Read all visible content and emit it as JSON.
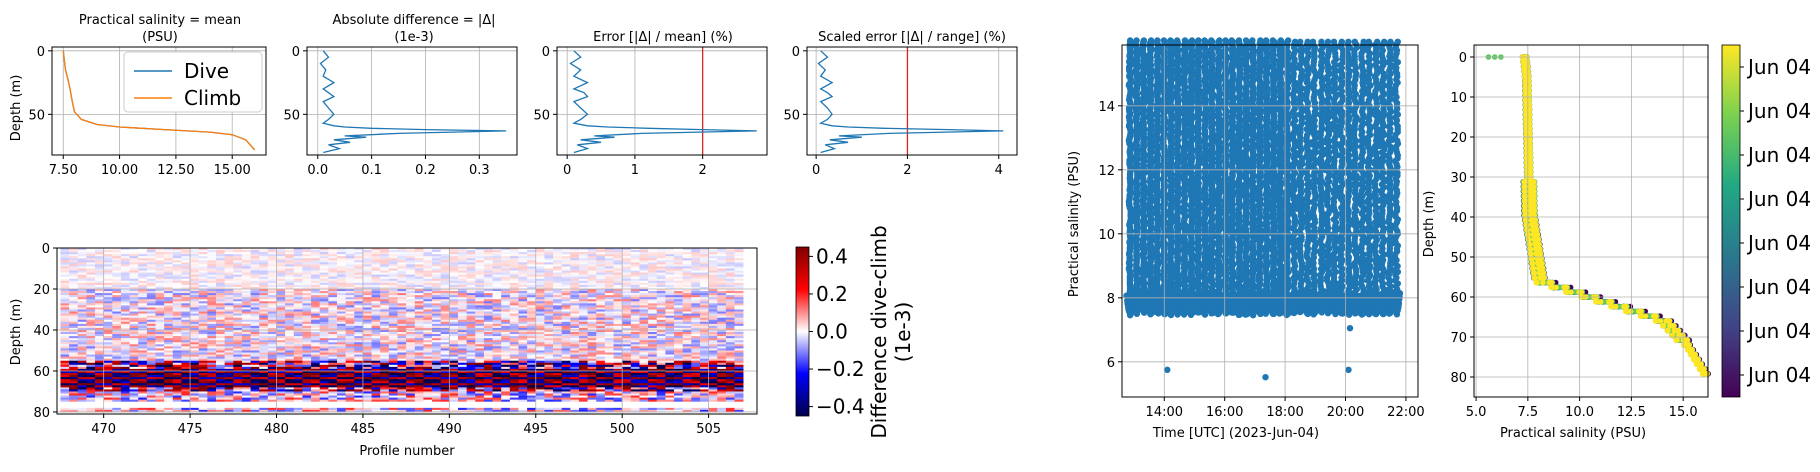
{
  "colors": {
    "dive": "#1f77b4",
    "climb": "#ff7f0e",
    "threshold": "#d62728",
    "diverging_negative": "#00008b",
    "diverging_positive": "#c00000",
    "viridis_low": "#440154",
    "viridis_high": "#fde725"
  },
  "chart_data": [
    {
      "type": "line",
      "title": "Practical salinity  = mean",
      "title_line2": "(PSU)",
      "xlabel": "",
      "ylabel": "Depth (m)",
      "xlim": [
        7.0,
        16.5
      ],
      "ylim": [
        82,
        -3
      ],
      "xticks": [
        "7.50",
        "10.00",
        "12.50",
        "15.00"
      ],
      "xtick_values": [
        7.5,
        10.0,
        12.5,
        15.0
      ],
      "yticks": [
        "0",
        "50"
      ],
      "ytick_values": [
        0,
        50
      ],
      "grid": true,
      "legend": {
        "placement": "top-right",
        "entries": [
          "Dive",
          "Climb"
        ]
      },
      "series": [
        {
          "name": "Dive",
          "x": [
            7.5,
            7.55,
            7.6,
            7.7,
            7.8,
            7.9,
            8.0,
            8.3,
            9.0,
            10.0,
            11.0,
            12.0,
            13.0,
            14.0,
            15.0,
            15.6,
            15.8,
            16.0
          ],
          "y": [
            0,
            8,
            15,
            22,
            30,
            40,
            48,
            54,
            58,
            60,
            61,
            62,
            63,
            64,
            66,
            70,
            74,
            78
          ]
        },
        {
          "name": "Climb",
          "x": [
            7.5,
            7.55,
            7.6,
            7.7,
            7.8,
            7.9,
            8.0,
            8.3,
            9.0,
            10.0,
            11.0,
            12.0,
            13.0,
            14.0,
            15.0,
            15.6,
            15.8,
            16.0
          ],
          "y": [
            0,
            8,
            15,
            22,
            30,
            40,
            48,
            54,
            58,
            60,
            61,
            62,
            63,
            64,
            66,
            70,
            74,
            78
          ]
        }
      ]
    },
    {
      "type": "line",
      "title": "Absolute difference = |Δ|",
      "title_line2": "(1e-3)",
      "xlim": [
        -0.02,
        0.37
      ],
      "ylim": [
        82,
        -3
      ],
      "xticks": [
        "0.0",
        "0.1",
        "0.2",
        "0.3"
      ],
      "xtick_values": [
        0.0,
        0.1,
        0.2,
        0.3
      ],
      "yticks": [
        "0",
        "50"
      ],
      "ytick_values": [
        0,
        50
      ],
      "grid": true,
      "series": [
        {
          "name": "",
          "x": [
            0.01,
            0.02,
            0.005,
            0.015,
            0.01,
            0.03,
            0.01,
            0.02,
            0.03,
            0.01,
            0.02,
            0.03,
            0.02,
            0.01,
            0.03,
            0.05,
            0.1,
            0.2,
            0.35,
            0.15,
            0.05,
            0.09,
            0.03,
            0.06,
            0.02,
            0.04,
            0.01
          ],
          "y": [
            0,
            5,
            10,
            15,
            20,
            25,
            30,
            33,
            36,
            40,
            45,
            50,
            54,
            57,
            59,
            60,
            61,
            62,
            63,
            65,
            67,
            68,
            70,
            72,
            74,
            77,
            80
          ]
        }
      ]
    },
    {
      "type": "line",
      "title": "Error [|Δ| / mean] (%)",
      "xlim": [
        -0.15,
        2.95
      ],
      "ylim": [
        82,
        -3
      ],
      "xticks": [
        "0",
        "1",
        "2"
      ],
      "xtick_values": [
        0,
        1,
        2
      ],
      "yticks": [
        "0",
        "50"
      ],
      "ytick_values": [
        0,
        50
      ],
      "threshold_x": 2,
      "grid": true,
      "series": [
        {
          "name": "",
          "x": [
            0.1,
            0.2,
            0.05,
            0.2,
            0.1,
            0.3,
            0.1,
            0.25,
            0.3,
            0.1,
            0.2,
            0.3,
            0.2,
            0.1,
            0.3,
            0.6,
            1.2,
            2.0,
            2.8,
            1.1,
            0.4,
            0.7,
            0.2,
            0.5,
            0.15,
            0.3,
            0.1
          ],
          "y": [
            0,
            5,
            10,
            15,
            20,
            25,
            30,
            33,
            36,
            40,
            45,
            50,
            54,
            57,
            59,
            60,
            61,
            62,
            63,
            65,
            67,
            68,
            70,
            72,
            74,
            77,
            80
          ]
        }
      ]
    },
    {
      "type": "line",
      "title": "Scaled error [|Δ| / range] (%)",
      "xlim": [
        -0.2,
        4.4
      ],
      "ylim": [
        82,
        -3
      ],
      "xticks": [
        "0",
        "2",
        "4"
      ],
      "xtick_values": [
        0,
        2,
        4
      ],
      "yticks": [
        "0",
        "50"
      ],
      "ytick_values": [
        0,
        50
      ],
      "threshold_x": 2,
      "grid": true,
      "series": [
        {
          "name": "",
          "x": [
            0.1,
            0.25,
            0.05,
            0.2,
            0.1,
            0.35,
            0.1,
            0.25,
            0.35,
            0.1,
            0.25,
            0.35,
            0.25,
            0.1,
            0.35,
            0.7,
            1.5,
            2.9,
            4.1,
            1.6,
            0.5,
            1.0,
            0.3,
            0.7,
            0.2,
            0.4,
            0.1
          ],
          "y": [
            0,
            5,
            10,
            15,
            20,
            25,
            30,
            33,
            36,
            40,
            45,
            50,
            54,
            57,
            59,
            60,
            61,
            62,
            63,
            65,
            67,
            68,
            70,
            72,
            74,
            77,
            80
          ]
        }
      ]
    },
    {
      "type": "heatmap",
      "xlabel": "Profile number",
      "ylabel": "Depth (m)",
      "xlim": [
        467.3,
        507.8
      ],
      "ylim": [
        81,
        0
      ],
      "xticks": [
        "470",
        "475",
        "480",
        "485",
        "490",
        "495",
        "500",
        "505"
      ],
      "xtick_values": [
        470,
        475,
        480,
        485,
        490,
        495,
        500,
        505
      ],
      "yticks": [
        "0",
        "20",
        "40",
        "60",
        "80"
      ],
      "ytick_values": [
        0,
        20,
        40,
        60,
        80
      ],
      "grid": true,
      "x_start": 467.5,
      "x_step": 0.5,
      "n_columns": 79,
      "depth_step": 1,
      "n_depths": 80,
      "colorbar": {
        "label": "Difference dive-climb",
        "label_line2": "(1e-3)",
        "ticks": [
          "0.4",
          "0.2",
          "0.0",
          "−0.2",
          "−0.4"
        ],
        "tick_values": [
          0.4,
          0.2,
          0.0,
          -0.2,
          -0.4
        ],
        "range": [
          -0.45,
          0.45
        ]
      }
    },
    {
      "type": "scatter",
      "xlabel": "Time [UTC] (2023-Jun-04)",
      "ylabel": "Practical salinity (PSU)",
      "xlim_hours": [
        12.6,
        22.4
      ],
      "ylim": [
        4.9,
        15.9
      ],
      "xticks": [
        "14:00",
        "16:00",
        "18:00",
        "20:00",
        "22:00"
      ],
      "xtick_values": [
        14,
        16,
        18,
        20,
        22
      ],
      "yticks": [
        "6",
        "8",
        "10",
        "12",
        "14"
      ],
      "ytick_values": [
        6,
        8,
        10,
        12,
        14
      ],
      "grid": true,
      "outliers": [
        {
          "x": 14.1,
          "y": 5.75
        },
        {
          "x": 17.35,
          "y": 5.52
        },
        {
          "x": 20.1,
          "y": 5.75
        },
        {
          "x": 20.15,
          "y": 7.05
        }
      ]
    },
    {
      "type": "scatter",
      "xlabel": "Practical salinity (PSU)",
      "ylabel": "Depth (m)",
      "xlim": [
        4.9,
        16.2
      ],
      "ylim": [
        85,
        -3
      ],
      "xticks": [
        "5.0",
        "7.5",
        "10.0",
        "12.5",
        "15.0"
      ],
      "xtick_values": [
        5.0,
        7.5,
        10.0,
        12.5,
        15.0
      ],
      "yticks": [
        "0",
        "10",
        "20",
        "30",
        "40",
        "50",
        "60",
        "70",
        "80"
      ],
      "ytick_values": [
        0,
        10,
        20,
        30,
        40,
        50,
        60,
        70,
        80
      ],
      "grid": true,
      "colorbar": {
        "ticks": [
          "Jun 04",
          "Jun 04",
          "Jun 04",
          "Jun 04",
          "Jun 04",
          "Jun 04",
          "Jun 04",
          "Jun 04"
        ]
      }
    }
  ]
}
